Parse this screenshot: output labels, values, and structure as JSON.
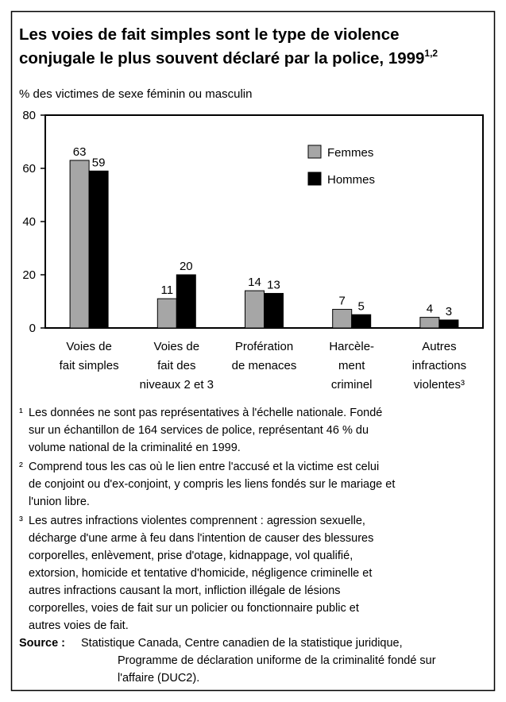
{
  "chart_data": {
    "type": "bar",
    "title": [
      "Les voies de fait simples sont le type de violence",
      "conjugale le plus souvent déclaré par la police, 1999"
    ],
    "title_note": "1,2",
    "y_label": "% des victimes de sexe féminin ou masculin",
    "categories": [
      [
        "Voies de",
        "fait simples"
      ],
      [
        "Voies de",
        "fait des",
        "niveaux 2 et 3"
      ],
      [
        "Profération",
        "de menaces"
      ],
      [
        "Harcèle-",
        "ment",
        "criminel"
      ],
      [
        "Autres",
        "infractions",
        "violentes³"
      ]
    ],
    "series": [
      {
        "name": "Femmes",
        "color": "#a6a6a6",
        "values": [
          63,
          11,
          14,
          7,
          4
        ]
      },
      {
        "name": "Hommes",
        "color": "#000000",
        "values": [
          59,
          20,
          13,
          5,
          3
        ]
      }
    ],
    "ylim": [
      0,
      80
    ],
    "yticks": [
      0,
      20,
      40,
      60,
      80
    ],
    "footnotes": [
      {
        "mark": "¹",
        "lines": [
          "Les données ne sont pas représentatives à l'échelle nationale.  Fondé",
          "sur un échantillon de 164 services de police, représentant 46 % du",
          "volume national de la criminalité en 1999."
        ]
      },
      {
        "mark": "²",
        "lines": [
          "Comprend tous les cas où le lien entre l'accusé et la victime est celui",
          "de conjoint ou d'ex-conjoint, y compris les liens fondés sur le mariage et",
          "l'union libre."
        ]
      },
      {
        "mark": "³",
        "lines": [
          "Les autres infractions violentes comprennent : agression sexuelle,",
          "décharge d'une arme à feu dans l'intention de causer des blessures",
          "corporelles, enlèvement, prise d'otage, kidnappage, vol qualifié,",
          "extorsion, homicide et tentative d'homicide, négligence criminelle et",
          "autres infractions causant la mort, infliction illégale de lésions",
          "corporelles, voies de fait sur un policier ou fonctionnaire public et",
          "autres voies de fait."
        ]
      }
    ],
    "source": {
      "label": "Source :",
      "lines": [
        "Statistique Canada, Centre canadien de la statistique juridique,",
        "Programme de déclaration uniforme de la criminalité fondé sur",
        "l'affaire (DUC2)."
      ]
    }
  }
}
